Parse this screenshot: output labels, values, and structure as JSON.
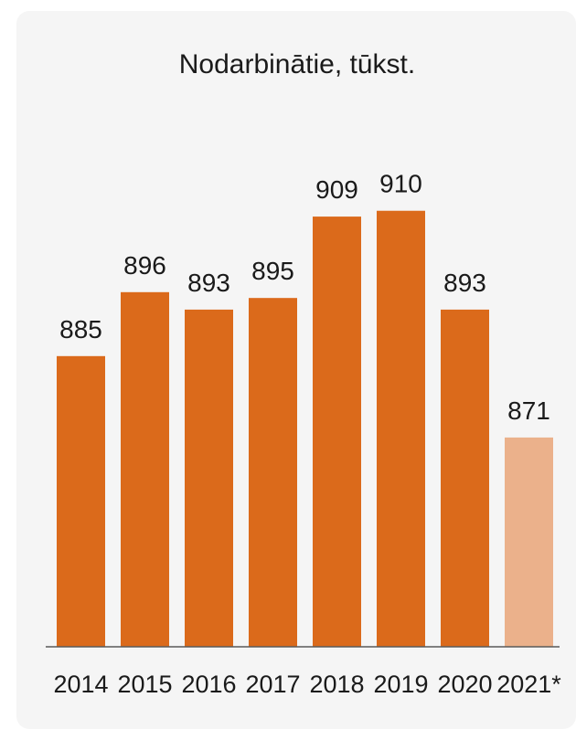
{
  "chart_data": {
    "type": "bar",
    "title": "Nodarbinātie, tūkst.",
    "categories": [
      "2014",
      "2015",
      "2016",
      "2017",
      "2018",
      "2019",
      "2020",
      "2021*"
    ],
    "values": [
      885,
      896,
      893,
      895,
      909,
      910,
      893,
      871
    ],
    "ylim": [
      835,
      912
    ],
    "grid": false,
    "legend": "none",
    "colors": {
      "bar": "#db6a1b",
      "bar_projected": "#ebb18b",
      "axis": "#5a5a5a",
      "background": "#f5f5f5"
    }
  }
}
